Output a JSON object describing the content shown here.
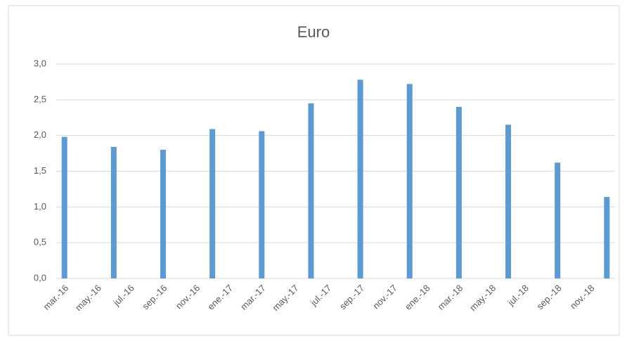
{
  "chart_data": {
    "type": "bar",
    "title": "Euro",
    "categories": [
      "mar.-16",
      null,
      "may.-16",
      null,
      "jul.-16",
      null,
      "sep.-16",
      null,
      "nov.-16",
      null,
      "ene.-17",
      null,
      "mar.-17",
      null,
      "may.-17",
      null,
      "jul.-17",
      null,
      "sep.-17",
      null,
      "nov.-17",
      null,
      "ene.-18",
      null,
      "mar.-18",
      null,
      "may.-18",
      null,
      "jul.-18",
      null,
      "sep.-18",
      null,
      "nov.-18",
      null
    ],
    "values": [
      1.98,
      null,
      null,
      1.84,
      null,
      null,
      1.8,
      null,
      null,
      2.09,
      null,
      null,
      2.06,
      null,
      null,
      2.45,
      null,
      null,
      2.78,
      null,
      null,
      2.72,
      null,
      null,
      2.4,
      null,
      null,
      2.15,
      null,
      null,
      1.62,
      null,
      null,
      1.14
    ],
    "color": "#5b9bd5",
    "ylim": [
      0,
      3
    ],
    "yticks": [
      {
        "value": 0,
        "label": "0,0"
      },
      {
        "value": 0.5,
        "label": "0,5"
      },
      {
        "value": 1,
        "label": "1,0"
      },
      {
        "value": 1.5,
        "label": "1,5"
      },
      {
        "value": 2,
        "label": "2,0"
      },
      {
        "value": 2.5,
        "label": "2,5"
      },
      {
        "value": 3,
        "label": "3,0"
      }
    ],
    "grid": true
  }
}
